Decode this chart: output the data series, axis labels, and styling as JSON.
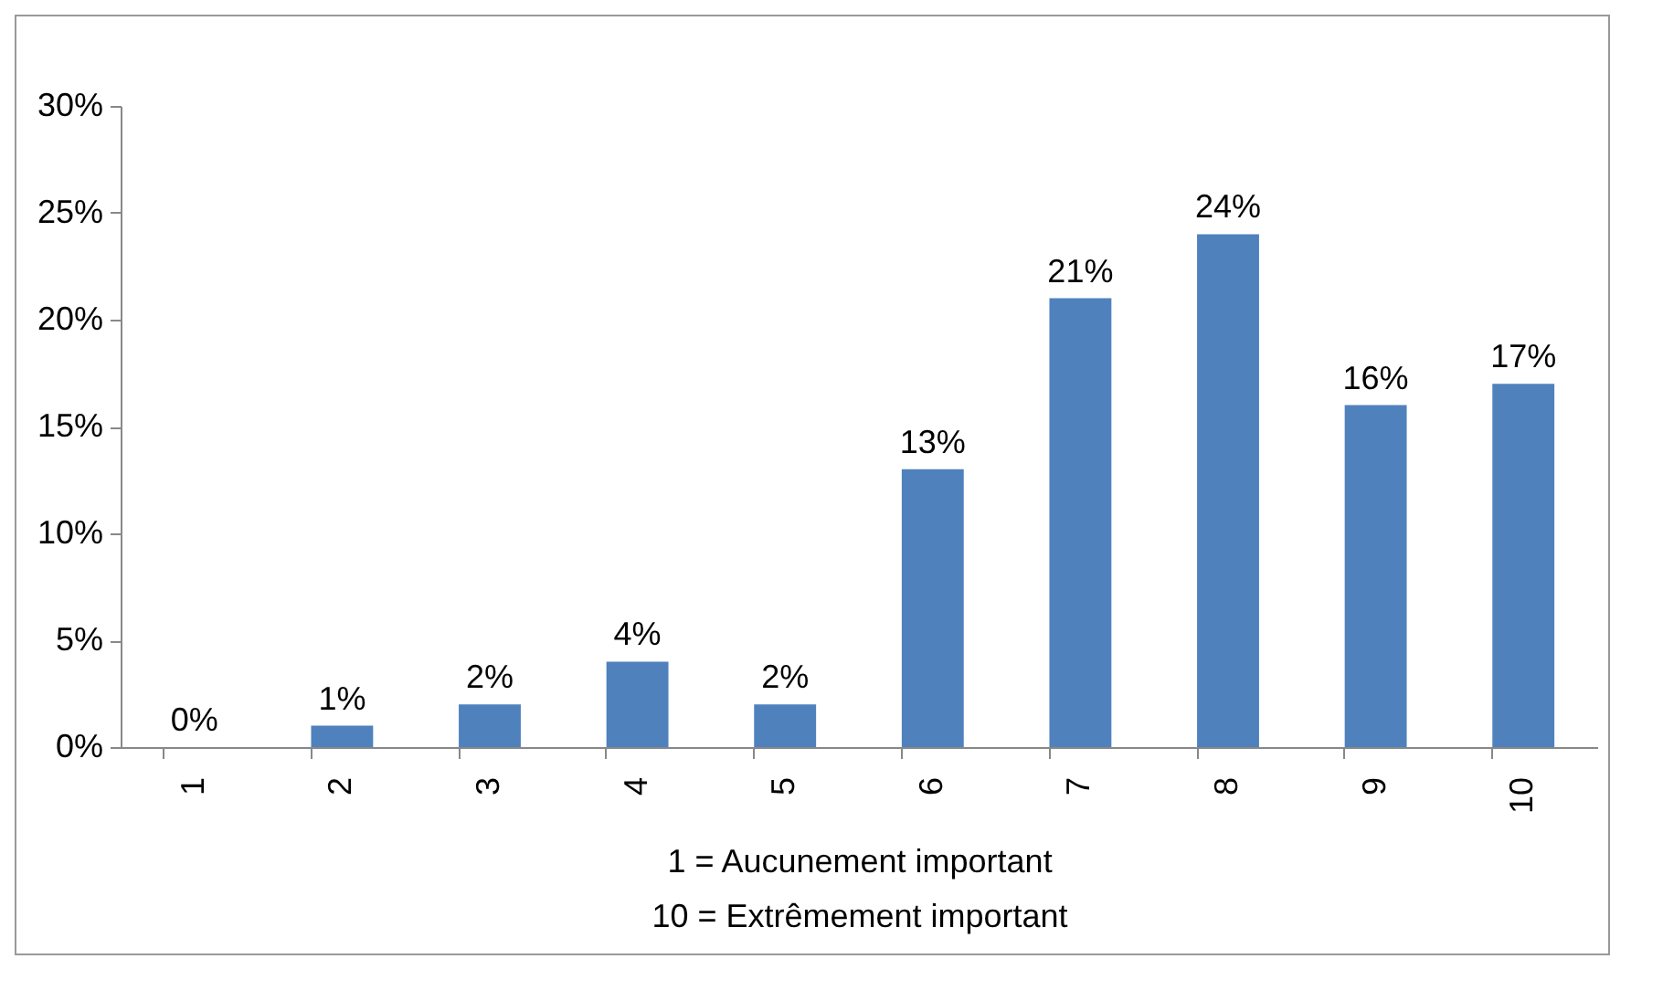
{
  "chart_data": {
    "type": "bar",
    "categories": [
      "1",
      "2",
      "3",
      "4",
      "5",
      "6",
      "7",
      "8",
      "9",
      "10"
    ],
    "values": [
      0,
      1,
      2,
      4,
      2,
      13,
      21,
      24,
      16,
      17
    ],
    "value_labels": [
      "0%",
      "1%",
      "2%",
      "4%",
      "2%",
      "13%",
      "21%",
      "24%",
      "16%",
      "17%"
    ],
    "color": "#4f81bd",
    "xlabel": "1 = Aucunement important\n10 = Extrêmement important",
    "ylim": [
      0,
      30
    ],
    "yticks": [
      {
        "value": 0,
        "label": "0%"
      },
      {
        "value": 5,
        "label": "5%"
      },
      {
        "value": 10,
        "label": "10%"
      },
      {
        "value": 15,
        "label": "15%"
      },
      {
        "value": 20,
        "label": "20%"
      },
      {
        "value": 25,
        "label": "25%"
      },
      {
        "value": 30,
        "label": "30%"
      }
    ],
    "grid": false
  }
}
